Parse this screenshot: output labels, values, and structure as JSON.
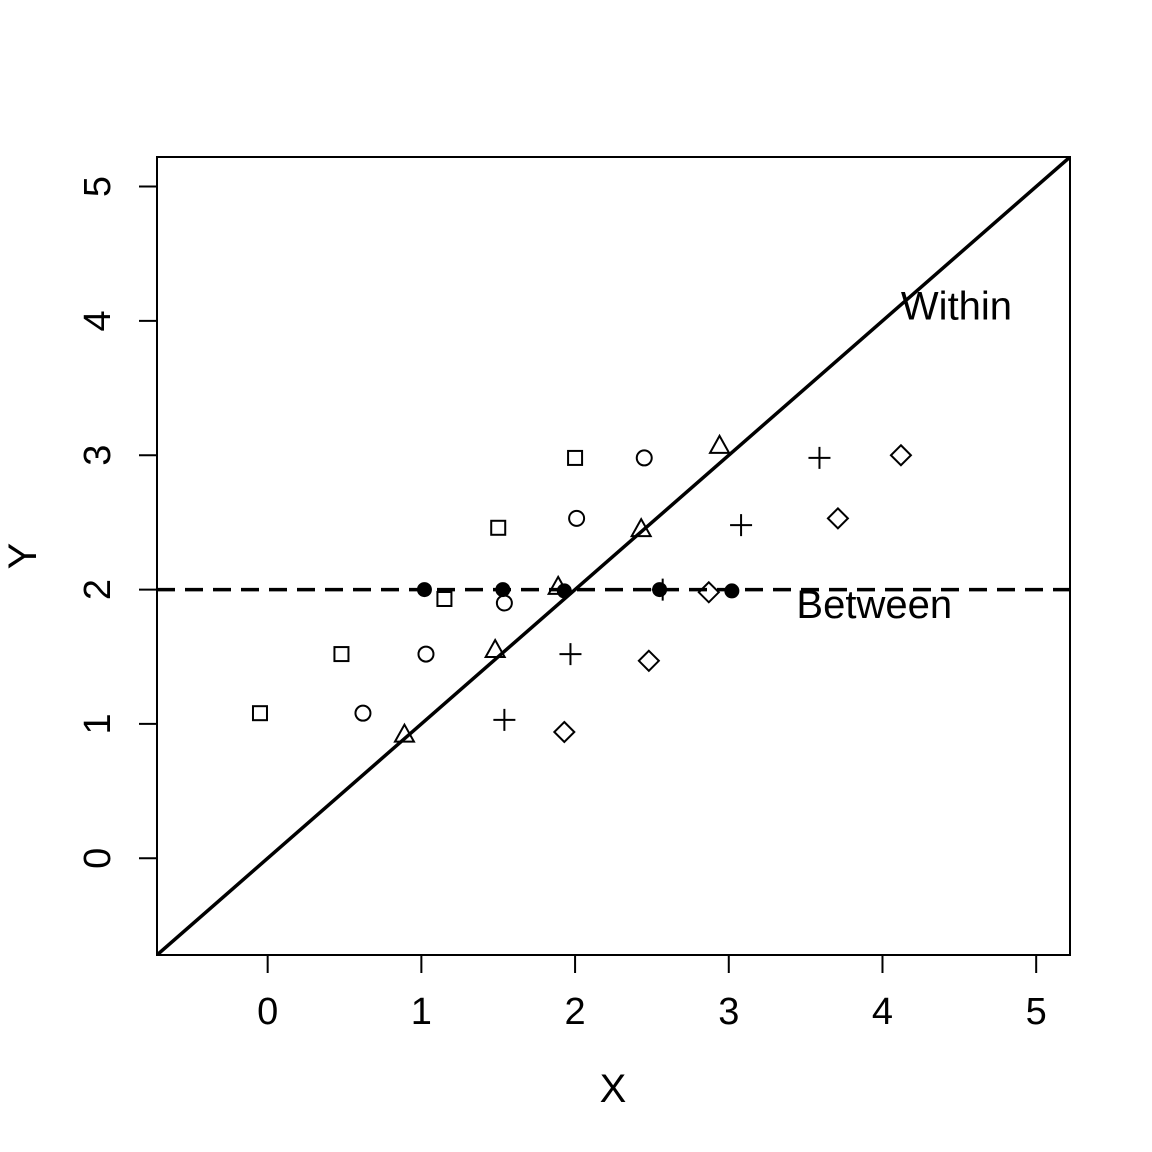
{
  "chart_data": {
    "type": "scatter",
    "title": "",
    "xlabel": "X",
    "ylabel": "Y",
    "xlim": [
      -0.72,
      5.22
    ],
    "ylim": [
      -0.72,
      5.22
    ],
    "xticks": [
      "0",
      "1",
      "2",
      "3",
      "4",
      "5"
    ],
    "yticks": [
      "0",
      "1",
      "2",
      "3",
      "4",
      "5"
    ],
    "grid": false,
    "series": [
      {
        "symbol": "square",
        "points": [
          [
            -0.05,
            1.08
          ],
          [
            0.48,
            1.52
          ],
          [
            1.15,
            1.93
          ],
          [
            1.5,
            2.46
          ],
          [
            2.0,
            2.98
          ]
        ]
      },
      {
        "symbol": "circle",
        "points": [
          [
            0.62,
            1.08
          ],
          [
            1.03,
            1.52
          ],
          [
            1.54,
            1.9
          ],
          [
            2.01,
            2.53
          ],
          [
            2.45,
            2.98
          ]
        ]
      },
      {
        "symbol": "triangle",
        "points": [
          [
            0.89,
            0.92
          ],
          [
            1.48,
            1.55
          ],
          [
            1.89,
            2.02
          ],
          [
            2.43,
            2.45
          ],
          [
            2.94,
            3.07
          ]
        ]
      },
      {
        "symbol": "plus",
        "points": [
          [
            1.54,
            1.03
          ],
          [
            1.97,
            1.52
          ],
          [
            2.57,
            2.0
          ],
          [
            3.08,
            2.48
          ],
          [
            3.59,
            2.98
          ]
        ]
      },
      {
        "symbol": "diamond",
        "points": [
          [
            1.93,
            0.94
          ],
          [
            2.48,
            1.47
          ],
          [
            2.87,
            1.98
          ],
          [
            3.71,
            2.53
          ],
          [
            4.12,
            3.0
          ]
        ]
      },
      {
        "symbol": "filled-circle",
        "points": [
          [
            1.02,
            2.0
          ],
          [
            1.53,
            2.0
          ],
          [
            1.93,
            1.99
          ],
          [
            2.55,
            2.0
          ],
          [
            3.02,
            1.99
          ]
        ]
      }
    ],
    "lines": [
      {
        "label": "Within",
        "style": "solid",
        "intercept": 0,
        "slope": 1
      },
      {
        "label": "Between",
        "style": "dashed",
        "intercept": 2,
        "slope": 0
      }
    ],
    "annotations": [
      {
        "text": "Within",
        "x": 4.12,
        "y": 4.01,
        "anchor": "start"
      },
      {
        "text": "Between",
        "x": 3.44,
        "y": 1.79,
        "anchor": "start"
      }
    ]
  }
}
